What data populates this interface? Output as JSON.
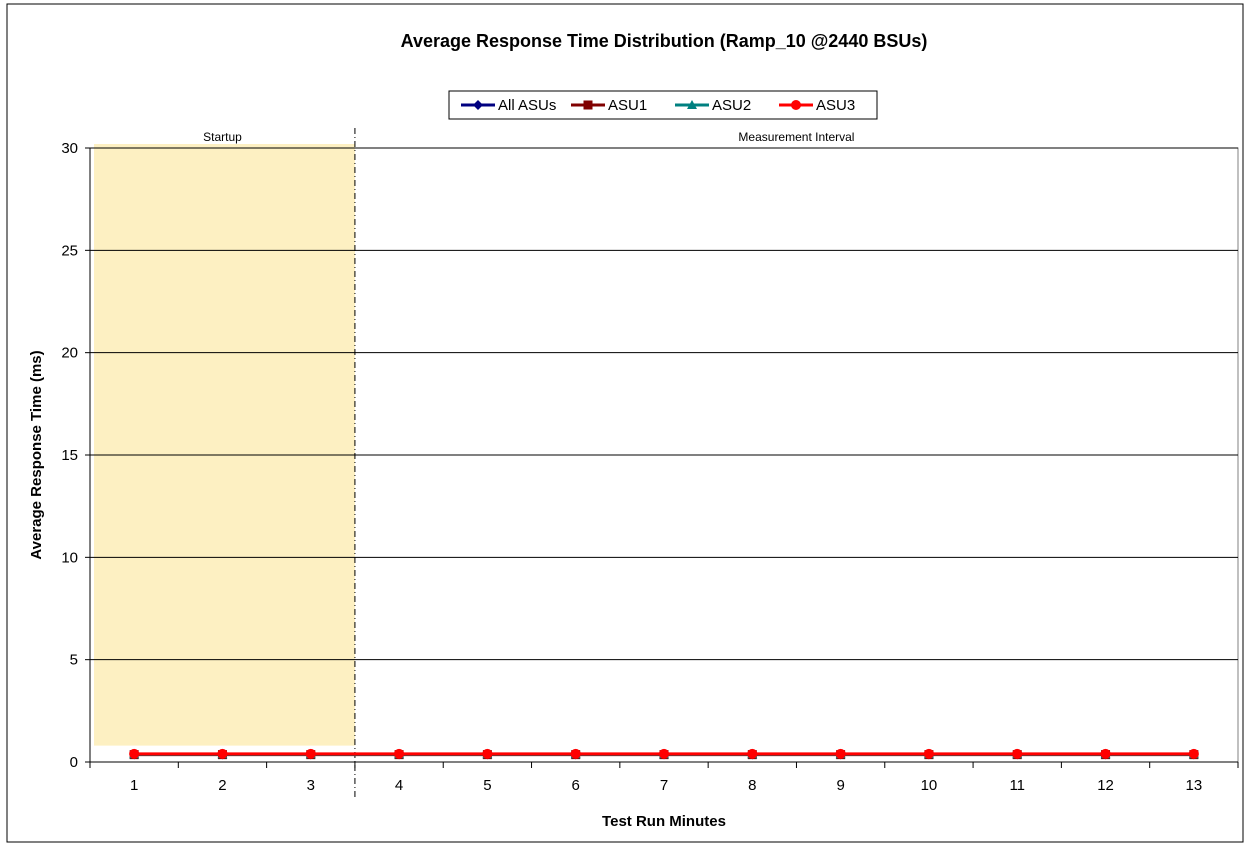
{
  "chart_data": {
    "type": "line",
    "title": "Average Response Time Distribution (Ramp_10 @2440 BSUs)",
    "xlabel": "Test Run Minutes",
    "ylabel": "Average Response Time (ms)",
    "x": [
      1,
      2,
      3,
      4,
      5,
      6,
      7,
      8,
      9,
      10,
      11,
      12,
      13
    ],
    "ylim": [
      0,
      30
    ],
    "yticks": [
      0,
      5,
      10,
      15,
      20,
      25,
      30
    ],
    "grid": true,
    "legend_position": "top-center",
    "regions": [
      {
        "label": "Startup",
        "x_from": 1,
        "x_to": 3,
        "color": "#fdf0c2"
      },
      {
        "label": "Measurement Interval",
        "x_from": 4,
        "x_to": 13
      }
    ],
    "series": [
      {
        "name": "All ASUs",
        "color": "#000080",
        "marker": "diamond",
        "values": [
          0.37,
          0.37,
          0.37,
          0.37,
          0.37,
          0.37,
          0.37,
          0.37,
          0.37,
          0.37,
          0.37,
          0.37,
          0.37
        ]
      },
      {
        "name": "ASU1",
        "color": "#800000",
        "marker": "square",
        "values": [
          0.36,
          0.36,
          0.36,
          0.36,
          0.36,
          0.36,
          0.36,
          0.36,
          0.36,
          0.36,
          0.36,
          0.36,
          0.36
        ]
      },
      {
        "name": "ASU2",
        "color": "#008080",
        "marker": "triangle",
        "values": [
          0.38,
          0.38,
          0.38,
          0.38,
          0.38,
          0.38,
          0.38,
          0.38,
          0.38,
          0.38,
          0.38,
          0.38,
          0.38
        ]
      },
      {
        "name": "ASU3",
        "color": "#ff0000",
        "marker": "circle",
        "values": [
          0.4,
          0.4,
          0.4,
          0.4,
          0.4,
          0.4,
          0.4,
          0.4,
          0.4,
          0.4,
          0.4,
          0.4,
          0.4
        ]
      }
    ]
  }
}
